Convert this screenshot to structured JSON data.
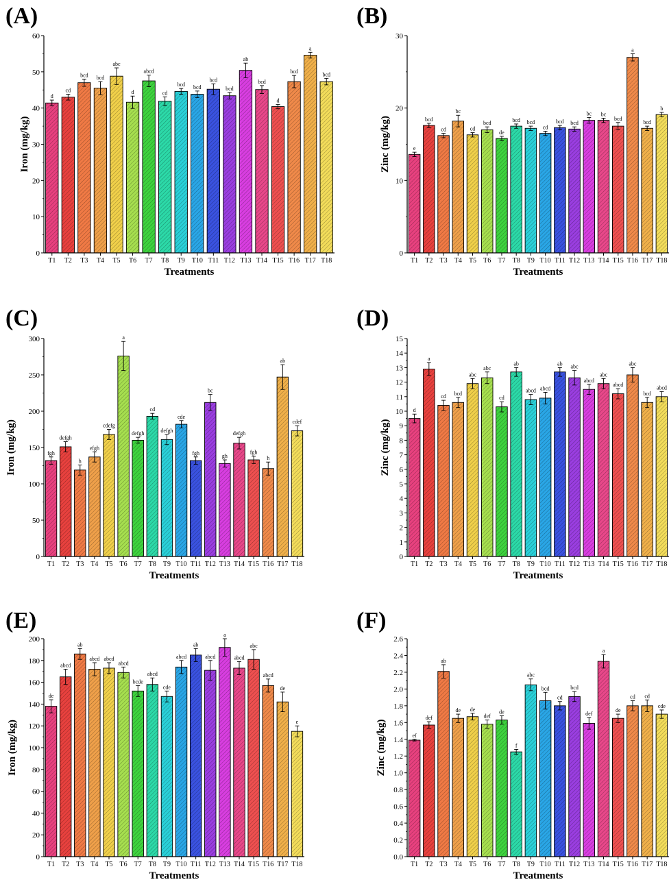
{
  "figure": {
    "xlabel": "Treatments",
    "categories": [
      "T1",
      "T2",
      "T3",
      "T4",
      "T5",
      "T6",
      "T7",
      "T8",
      "T9",
      "T10",
      "T11",
      "T12",
      "T13",
      "T14",
      "T15",
      "T16",
      "T17",
      "T18"
    ],
    "bar_colors": [
      "#e8417f",
      "#e8413e",
      "#f07a45",
      "#efa04a",
      "#f0d04a",
      "#a6df4f",
      "#3ed33e",
      "#2cd9a8",
      "#2ad0d8",
      "#2aa6e6",
      "#3a52e0",
      "#9a3ee0",
      "#d83ee0",
      "#e8488a",
      "#ee5050",
      "#f08a4a",
      "#f0b04a",
      "#f2dc5a"
    ]
  },
  "chart_data": [
    {
      "panel": "(A)",
      "type": "bar",
      "ylabel": "Iron (mg/kg)",
      "ylim": [
        0,
        60
      ],
      "ytick_step": 10,
      "ytick_decimals": 0,
      "values": [
        41.4,
        43.0,
        47.0,
        45.5,
        48.8,
        41.6,
        47.5,
        41.9,
        44.6,
        43.8,
        45.2,
        43.4,
        50.4,
        45.1,
        40.4,
        47.3,
        54.6,
        47.3
      ],
      "errors": [
        0.8,
        0.8,
        1.0,
        1.8,
        2.3,
        1.7,
        1.6,
        1.2,
        0.8,
        0.9,
        1.5,
        0.9,
        2.0,
        1.1,
        0.6,
        1.7,
        0.8,
        0.9
      ],
      "letters": [
        "d",
        "cd",
        "bcd",
        "bcd",
        "abc",
        "d",
        "abcd",
        "cd",
        "bcd",
        "bcd",
        "bcd",
        "bcd",
        "ab",
        "bcd",
        "d",
        "bcd",
        "a",
        "bcd"
      ]
    },
    {
      "panel": "(B)",
      "type": "bar",
      "ylabel": "Zinc (mg/kg)",
      "ylim": [
        0,
        30
      ],
      "ytick_step": 10,
      "ytick_decimals": 0,
      "values": [
        13.6,
        17.6,
        16.2,
        18.2,
        16.3,
        17.0,
        15.8,
        17.5,
        17.2,
        16.5,
        17.3,
        17.1,
        18.3,
        18.3,
        17.5,
        27.0,
        17.2,
        19.1
      ],
      "errors": [
        0.3,
        0.3,
        0.3,
        0.8,
        0.3,
        0.4,
        0.3,
        0.3,
        0.3,
        0.3,
        0.3,
        0.3,
        0.4,
        0.3,
        0.5,
        0.5,
        0.3,
        0.3
      ],
      "letters": [
        "e",
        "bcd",
        "cd",
        "bc",
        "cd",
        "bcd",
        "de",
        "bcd",
        "bcd",
        "cd",
        "bcd",
        "bcd",
        "bc",
        "bc",
        "bcd",
        "a",
        "bcd",
        "b"
      ]
    },
    {
      "panel": "(C)",
      "type": "bar",
      "ylabel": "Iron (mg/kg)",
      "ylim": [
        0,
        300
      ],
      "ytick_step": 50,
      "ytick_decimals": 0,
      "values": [
        132,
        151,
        119,
        137,
        168,
        276,
        160,
        193,
        161,
        182,
        132,
        212,
        128,
        156,
        133,
        121,
        247,
        173
      ],
      "errors": [
        5,
        7,
        7,
        7,
        7,
        20,
        4,
        4,
        7,
        5,
        5,
        11,
        5,
        8,
        5,
        9,
        17,
        7
      ],
      "letters": [
        "fgh",
        "defgh",
        "h",
        "efgh",
        "cdefg",
        "a",
        "defgh",
        "cd",
        "defgh",
        "cde",
        "fgh",
        "bc",
        "gh",
        "defgh",
        "fgh",
        "h",
        "ab",
        "cdef"
      ]
    },
    {
      "panel": "(D)",
      "type": "bar",
      "ylabel": "Zinc (mg/kg)",
      "ylim": [
        0,
        15
      ],
      "ytick_step": 1,
      "ytick_decimals": 0,
      "values": [
        9.5,
        12.9,
        10.4,
        10.6,
        11.9,
        12.3,
        10.3,
        12.7,
        10.8,
        10.9,
        12.7,
        12.3,
        11.5,
        11.9,
        11.2,
        12.5,
        10.6,
        11.0
      ],
      "errors": [
        0.3,
        0.45,
        0.35,
        0.35,
        0.35,
        0.4,
        0.35,
        0.3,
        0.35,
        0.4,
        0.3,
        0.5,
        0.35,
        0.35,
        0.35,
        0.5,
        0.35,
        0.35
      ],
      "letters": [
        "d",
        "a",
        "cd",
        "bcd",
        "abc",
        "abc",
        "cd",
        "ab",
        "abcd",
        "abcd",
        "ab",
        "abc",
        "abcd",
        "abc",
        "abcd",
        "abc",
        "bcd",
        "abcd"
      ]
    },
    {
      "panel": "(E)",
      "type": "bar",
      "ylabel": "Iron (mg/kg)",
      "ylim": [
        0,
        200
      ],
      "ytick_step": 20,
      "ytick_decimals": 0,
      "values": [
        138,
        165,
        186,
        172,
        173,
        169,
        152,
        158,
        147,
        174,
        185,
        171,
        192,
        173,
        181,
        157,
        142,
        115
      ],
      "errors": [
        6,
        7,
        5,
        6,
        5,
        5,
        5,
        6,
        5,
        6,
        6,
        9,
        8,
        6,
        9,
        6,
        9,
        5
      ],
      "letters": [
        "de",
        "abcd",
        "ab",
        "abcd",
        "abcd",
        "abcd",
        "bcde",
        "abcd",
        "cde",
        "abcd",
        "ab",
        "abcd",
        "a",
        "abcd",
        "abc",
        "abcd",
        "de",
        "e"
      ]
    },
    {
      "panel": "(F)",
      "type": "bar",
      "ylabel": "Zinc (mg/kg)",
      "ylim": [
        0,
        2.6
      ],
      "ytick_step": 0.2,
      "ytick_decimals": 1,
      "values": [
        1.39,
        1.57,
        2.21,
        1.65,
        1.67,
        1.58,
        1.63,
        1.25,
        2.05,
        1.86,
        1.8,
        1.91,
        1.59,
        2.33,
        1.65,
        1.8,
        1.8,
        1.7
      ],
      "errors": [
        0.01,
        0.04,
        0.08,
        0.05,
        0.04,
        0.05,
        0.05,
        0.03,
        0.07,
        0.1,
        0.05,
        0.06,
        0.07,
        0.08,
        0.05,
        0.06,
        0.07,
        0.05
      ],
      "letters": [
        "ef",
        "def",
        "ab",
        "de",
        "de",
        "def",
        "de",
        "f",
        "abc",
        "bcd",
        "cd",
        "bcd",
        "def",
        "a",
        "de",
        "cd",
        "cd",
        "cde"
      ]
    }
  ]
}
